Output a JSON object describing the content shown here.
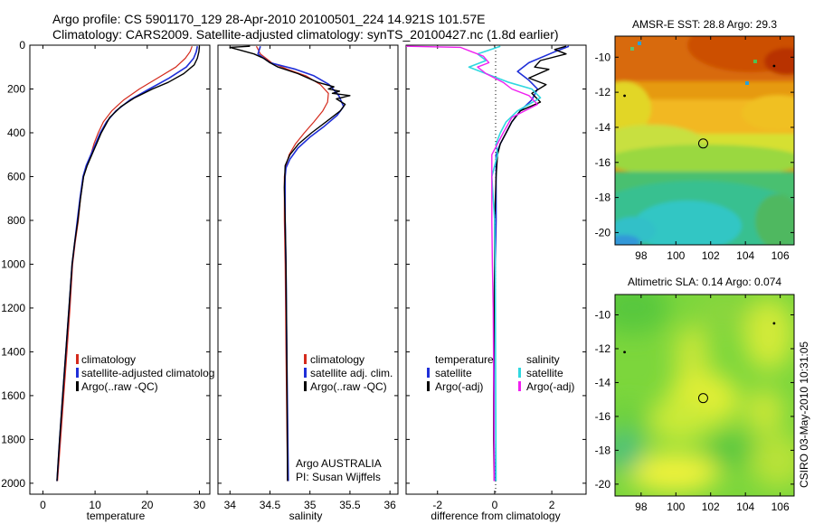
{
  "title": {
    "line1": "Argo profile: CS 5901170_129 28-Apr-2010 20100501_224 14.921S 101.57E",
    "line2": "Climatology: CARS2009. Satellite-adjusted climatology: synTS_20100427.nc (1.8d earlier)"
  },
  "credits": {
    "argo": "Argo AUSTRALIA",
    "pi": "PI: Susan Wijffels",
    "csiro": "CSIRO 03-May-2010 10:31:05"
  },
  "colors": {
    "climatology": "#d42a1c",
    "satellite": "#1f2fd8",
    "argo": "#000000",
    "sal_satellite": "#30d8e0",
    "sal_argo": "#f020f0"
  },
  "chart_data": [
    {
      "type": "line",
      "xlabel": "temperature",
      "ylim": [
        0,
        2050
      ],
      "y_reversed": true,
      "yticks": [
        0,
        200,
        400,
        600,
        800,
        1000,
        1200,
        1400,
        1600,
        1800,
        2000
      ],
      "xlim": [
        -2.5,
        32
      ],
      "xticks": [
        0,
        10,
        20,
        30
      ],
      "legend": [
        "climatology",
        "satellite-adjusted climatolog",
        "Argo(..raw -QC)"
      ],
      "series": [
        {
          "name": "climatology",
          "color": "#d42a1c",
          "width": 1.2,
          "points": [
            [
              28.6,
              5
            ],
            [
              28.2,
              30
            ],
            [
              27.3,
              60
            ],
            [
              25.5,
              100
            ],
            [
              22,
              150
            ],
            [
              18.5,
              200
            ],
            [
              15.5,
              250
            ],
            [
              13.2,
              300
            ],
            [
              11.6,
              350
            ],
            [
              10.6,
              400
            ],
            [
              9.8,
              450
            ],
            [
              9.2,
              500
            ],
            [
              8.4,
              550
            ],
            [
              7.8,
              600
            ],
            [
              7.2,
              700
            ],
            [
              6.8,
              800
            ],
            [
              6.2,
              900
            ],
            [
              5.7,
              1000
            ],
            [
              5.2,
              1200
            ],
            [
              4.6,
              1400
            ],
            [
              4,
              1600
            ],
            [
              3.4,
              1800
            ],
            [
              2.8,
              1990
            ]
          ]
        },
        {
          "name": "satellite-adjusted climatology",
          "color": "#1f2fd8",
          "width": 1.6,
          "points": [
            [
              29.6,
              5
            ],
            [
              29.4,
              30
            ],
            [
              28.9,
              60
            ],
            [
              27.5,
              100
            ],
            [
              24.2,
              150
            ],
            [
              20.4,
              200
            ],
            [
              16.7,
              250
            ],
            [
              14,
              300
            ],
            [
              12.2,
              350
            ],
            [
              11,
              400
            ],
            [
              10.1,
              450
            ],
            [
              9.2,
              500
            ],
            [
              8.3,
              550
            ],
            [
              7.7,
              600
            ],
            [
              7.1,
              700
            ],
            [
              6.6,
              800
            ],
            [
              6.1,
              900
            ],
            [
              5.6,
              1000
            ],
            [
              5,
              1200
            ],
            [
              4.4,
              1400
            ],
            [
              3.8,
              1600
            ],
            [
              3.2,
              1800
            ],
            [
              2.7,
              1990
            ]
          ]
        },
        {
          "name": "Argo(..raw -QC)",
          "color": "#000000",
          "width": 1.4,
          "points": [
            [
              30,
              5
            ],
            [
              29.9,
              30
            ],
            [
              29.6,
              60
            ],
            [
              29,
              90
            ],
            [
              27,
              130
            ],
            [
              24,
              170
            ],
            [
              21,
              200
            ],
            [
              17.6,
              240
            ],
            [
              15,
              280
            ],
            [
              12.8,
              330
            ],
            [
              11.2,
              400
            ],
            [
              10.3,
              450
            ],
            [
              9.4,
              500
            ],
            [
              8.5,
              550
            ],
            [
              7.8,
              600
            ],
            [
              7.2,
              700
            ],
            [
              6.7,
              800
            ],
            [
              6.1,
              900
            ],
            [
              5.6,
              1000
            ],
            [
              5,
              1200
            ],
            [
              4.4,
              1400
            ],
            [
              3.8,
              1600
            ],
            [
              3.2,
              1800
            ],
            [
              2.7,
              1990
            ]
          ]
        }
      ]
    },
    {
      "type": "line",
      "xlabel": "salinity",
      "ylim": [
        0,
        2050
      ],
      "y_reversed": true,
      "xlim": [
        33.85,
        36.1
      ],
      "xticks": [
        34,
        34.5,
        35,
        35.5,
        36
      ],
      "legend": [
        "climatology",
        "satellite adj. clim.",
        "Argo(..raw -QC)"
      ],
      "series": [
        {
          "name": "climatology",
          "color": "#d42a1c",
          "width": 1.2,
          "points": [
            [
              34.33,
              5
            ],
            [
              34.38,
              40
            ],
            [
              34.52,
              80
            ],
            [
              34.72,
              110
            ],
            [
              34.95,
              140
            ],
            [
              35.13,
              180
            ],
            [
              35.23,
              220
            ],
            [
              35.22,
              260
            ],
            [
              35.16,
              300
            ],
            [
              35.05,
              350
            ],
            [
              34.93,
              400
            ],
            [
              34.82,
              450
            ],
            [
              34.74,
              500
            ],
            [
              34.7,
              550
            ],
            [
              34.68,
              600
            ],
            [
              34.68,
              800
            ],
            [
              34.69,
              1000
            ],
            [
              34.7,
              1400
            ],
            [
              34.72,
              1990
            ]
          ]
        },
        {
          "name": "satellite adj. clim.",
          "color": "#1f2fd8",
          "width": 1.6,
          "points": [
            [
              34.38,
              5
            ],
            [
              34.35,
              40
            ],
            [
              34.5,
              80
            ],
            [
              34.82,
              110
            ],
            [
              35.05,
              140
            ],
            [
              35.24,
              180
            ],
            [
              35.36,
              230
            ],
            [
              35.42,
              280
            ],
            [
              35.34,
              320
            ],
            [
              35.18,
              370
            ],
            [
              35,
              420
            ],
            [
              34.85,
              470
            ],
            [
              34.75,
              520
            ],
            [
              34.7,
              560
            ],
            [
              34.69,
              600
            ],
            [
              34.69,
              800
            ],
            [
              34.7,
              1000
            ],
            [
              34.71,
              1400
            ],
            [
              34.73,
              1990
            ]
          ]
        },
        {
          "name": "Argo(..raw -QC)",
          "color": "#000000",
          "width": 1.4,
          "points": [
            [
              34.25,
              5
            ],
            [
              34.0,
              10
            ],
            [
              34.1,
              20
            ],
            [
              34.3,
              40
            ],
            [
              34.42,
              60
            ],
            [
              34.5,
              80
            ],
            [
              34.6,
              100
            ],
            [
              34.85,
              130
            ],
            [
              35.1,
              170
            ],
            [
              35.3,
              190
            ],
            [
              35.23,
              200
            ],
            [
              35.37,
              210
            ],
            [
              35.28,
              220
            ],
            [
              35.5,
              230
            ],
            [
              35.33,
              245
            ],
            [
              35.44,
              270
            ],
            [
              35.38,
              300
            ],
            [
              35.2,
              350
            ],
            [
              35.02,
              400
            ],
            [
              34.86,
              450
            ],
            [
              34.75,
              500
            ],
            [
              34.69,
              550
            ],
            [
              34.68,
              650
            ],
            [
              34.69,
              800
            ],
            [
              34.7,
              1000
            ],
            [
              34.71,
              1400
            ],
            [
              34.72,
              1990
            ]
          ]
        }
      ]
    },
    {
      "type": "line",
      "xlabel": "difference from climatology",
      "ylim": [
        0,
        2050
      ],
      "y_reversed": true,
      "xlim": [
        -3.1,
        3.2
      ],
      "xticks": [
        -2,
        0,
        2
      ],
      "legend_groups": [
        {
          "title": "temperature",
          "items": [
            "satellite",
            "Argo(-adj)"
          ]
        },
        {
          "title": "salinity",
          "items": [
            "satellite",
            "Argo(-adj)"
          ]
        }
      ],
      "series": [
        {
          "name": "temperature satellite",
          "color": "#1f2fd8",
          "width": 1.6,
          "points": [
            [
              2.6,
              5
            ],
            [
              2.1,
              30
            ],
            [
              1.2,
              80
            ],
            [
              0.8,
              120
            ],
            [
              1.2,
              160
            ],
            [
              1.5,
              200
            ],
            [
              1.3,
              250
            ],
            [
              0.9,
              300
            ],
            [
              0.6,
              350
            ],
            [
              0.4,
              400
            ],
            [
              0.2,
              450
            ],
            [
              0.05,
              500
            ],
            [
              0.05,
              600
            ],
            [
              0.05,
              800
            ],
            [
              0.02,
              1000
            ],
            [
              0,
              1200
            ],
            [
              -0.02,
              1400
            ],
            [
              -0.02,
              1600
            ],
            [
              -0.02,
              1800
            ],
            [
              0,
              1990
            ]
          ]
        },
        {
          "name": "temperature Argo(-adj)",
          "color": "#000000",
          "width": 1.4,
          "points": [
            [
              2.5,
              5
            ],
            [
              2.1,
              20
            ],
            [
              2.5,
              40
            ],
            [
              1.6,
              70
            ],
            [
              1.4,
              100
            ],
            [
              1.9,
              110
            ],
            [
              1.2,
              150
            ],
            [
              1.8,
              180
            ],
            [
              1.3,
              220
            ],
            [
              1.6,
              260
            ],
            [
              0.9,
              300
            ],
            [
              0.6,
              350
            ],
            [
              0.4,
              400
            ],
            [
              0.2,
              450
            ],
            [
              0.1,
              500
            ],
            [
              0.05,
              600
            ],
            [
              0,
              800
            ],
            [
              0,
              1000
            ],
            [
              -0.02,
              1200
            ],
            [
              -0.03,
              1400
            ],
            [
              -0.04,
              1600
            ],
            [
              -0.04,
              1800
            ],
            [
              -0.02,
              1990
            ]
          ]
        },
        {
          "name": "salinity satellite",
          "color": "#30d8e0",
          "width": 1.6,
          "points": [
            [
              0.2,
              5
            ],
            [
              -0.6,
              40
            ],
            [
              -0.3,
              70
            ],
            [
              -0.9,
              100
            ],
            [
              -0.3,
              130
            ],
            [
              0.5,
              170
            ],
            [
              1.3,
              200
            ],
            [
              1.6,
              240
            ],
            [
              1.2,
              270
            ],
            [
              0.8,
              300
            ],
            [
              0.4,
              350
            ],
            [
              0.2,
              400
            ],
            [
              0.05,
              450
            ],
            [
              0.1,
              500
            ],
            [
              -0.1,
              600
            ],
            [
              0,
              800
            ],
            [
              0.02,
              1000
            ],
            [
              0.03,
              1400
            ],
            [
              0.05,
              1990
            ]
          ]
        },
        {
          "name": "salinity Argo(-adj)",
          "color": "#f020f0",
          "width": 1.4,
          "points": [
            [
              -3.1,
              5
            ],
            [
              -1.2,
              10
            ],
            [
              -0.8,
              30
            ],
            [
              -0.4,
              50
            ],
            [
              -0.2,
              80
            ],
            [
              -0.6,
              100
            ],
            [
              -0.3,
              130
            ],
            [
              0.3,
              170
            ],
            [
              0.6,
              200
            ],
            [
              1.2,
              230
            ],
            [
              1.5,
              270
            ],
            [
              0.6,
              330
            ],
            [
              0.3,
              400
            ],
            [
              -0.1,
              500
            ],
            [
              -0.1,
              600
            ],
            [
              -0.1,
              800
            ],
            [
              -0.08,
              1000
            ],
            [
              -0.05,
              1200
            ],
            [
              -0.03,
              1600
            ],
            [
              -0.02,
              1990
            ]
          ]
        }
      ]
    },
    {
      "type": "heatmap",
      "title": "AMSR-E SST: 28.8 Argo: 29.3",
      "xlim": [
        96.5,
        106.8
      ],
      "ylim": [
        -20.7,
        -8.8
      ],
      "xticks": [
        98,
        100,
        102,
        104,
        106
      ],
      "yticks": [
        -10,
        -12,
        -14,
        -16,
        -18,
        -20
      ],
      "argo_position": [
        101.57,
        -14.92
      ]
    },
    {
      "type": "heatmap",
      "title": "Altimetric SLA: 0.14 Argo: 0.074",
      "xlim": [
        96.5,
        106.8
      ],
      "ylim": [
        -20.7,
        -8.8
      ],
      "xticks": [
        98,
        100,
        102,
        104,
        106
      ],
      "yticks": [
        -10,
        -12,
        -14,
        -16,
        -18,
        -20
      ],
      "argo_position": [
        101.57,
        -14.92
      ]
    }
  ]
}
